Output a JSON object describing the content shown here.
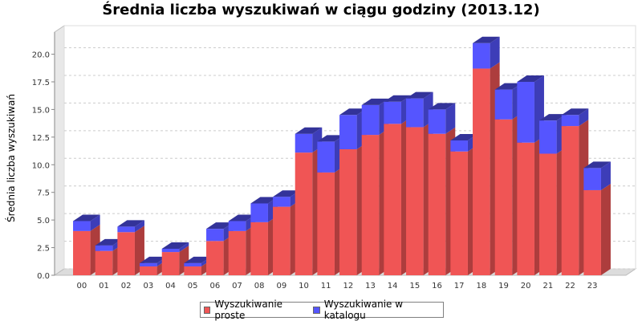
{
  "chart_data": {
    "type": "bar",
    "stacked": true,
    "three_d": true,
    "title": "Średnia liczba wyszukiwań w ciągu godziny (2013.12)",
    "ylabel": "Średnia liczba wyszukiwań",
    "xlabel": "",
    "ylim": [
      0,
      22
    ],
    "yticks": [
      "0.0",
      "2.5",
      "5.0",
      "7.5",
      "10.0",
      "12.5",
      "15.0",
      "17.5",
      "20.0"
    ],
    "categories": [
      "00",
      "01",
      "02",
      "03",
      "04",
      "05",
      "06",
      "07",
      "08",
      "09",
      "10",
      "11",
      "12",
      "13",
      "14",
      "15",
      "16",
      "17",
      "18",
      "19",
      "20",
      "21",
      "22",
      "23"
    ],
    "series": [
      {
        "name": "Wyszukiwanie proste",
        "color": "#f05555",
        "values": [
          4.0,
          2.2,
          3.9,
          0.8,
          2.1,
          0.8,
          3.1,
          4.0,
          4.8,
          6.2,
          11.1,
          9.3,
          11.4,
          12.7,
          13.7,
          13.4,
          12.8,
          11.2,
          18.7,
          14.1,
          12.0,
          11.0,
          13.5,
          7.7
        ]
      },
      {
        "name": "Wyszukiwanie w katalogu",
        "color": "#5555ff",
        "values": [
          0.9,
          0.5,
          0.5,
          0.3,
          0.3,
          0.3,
          1.1,
          0.9,
          1.7,
          0.9,
          1.7,
          2.8,
          3.1,
          2.7,
          2.0,
          2.6,
          2.2,
          1.0,
          2.3,
          2.7,
          5.5,
          3.0,
          1.0,
          2.0
        ]
      }
    ],
    "legend_position": "bottom",
    "grid": true
  }
}
